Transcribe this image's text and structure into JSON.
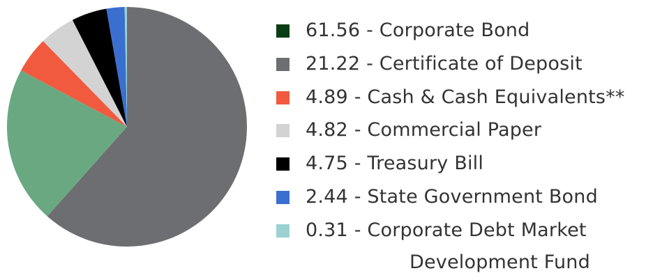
{
  "chart_data": {
    "type": "pie",
    "title": "",
    "series": [
      {
        "label": "61.56 - Corporate Bond",
        "value": 61.56,
        "color": "#0b3d14",
        "slice_color": "#6d6e71"
      },
      {
        "label": "21.22 - Certificate of Deposit",
        "value": 21.22,
        "color": "#6d6e71",
        "slice_color": "#6aa881"
      },
      {
        "label": "4.89 - Cash & Cash Equivalents**",
        "value": 4.89,
        "color": "#f15a3f",
        "slice_color": "#f15a3f"
      },
      {
        "label": "4.82 - Commercial Paper",
        "value": 4.82,
        "color": "#d3d3d3",
        "slice_color": "#d3d3d3"
      },
      {
        "label": "4.75 - Treasury Bill",
        "value": 4.75,
        "color": "#000000",
        "slice_color": "#000000"
      },
      {
        "label": "2.44 - State Government Bond",
        "value": 2.44,
        "color": "#3a6fd0",
        "slice_color": "#3a6fd0"
      },
      {
        "label": "0.31 - Corporate Debt Market",
        "label_cont": "Development Fund",
        "value": 0.31,
        "color": "#9bd1d1",
        "slice_color": "#9bd1d1"
      }
    ],
    "legend": "right"
  }
}
